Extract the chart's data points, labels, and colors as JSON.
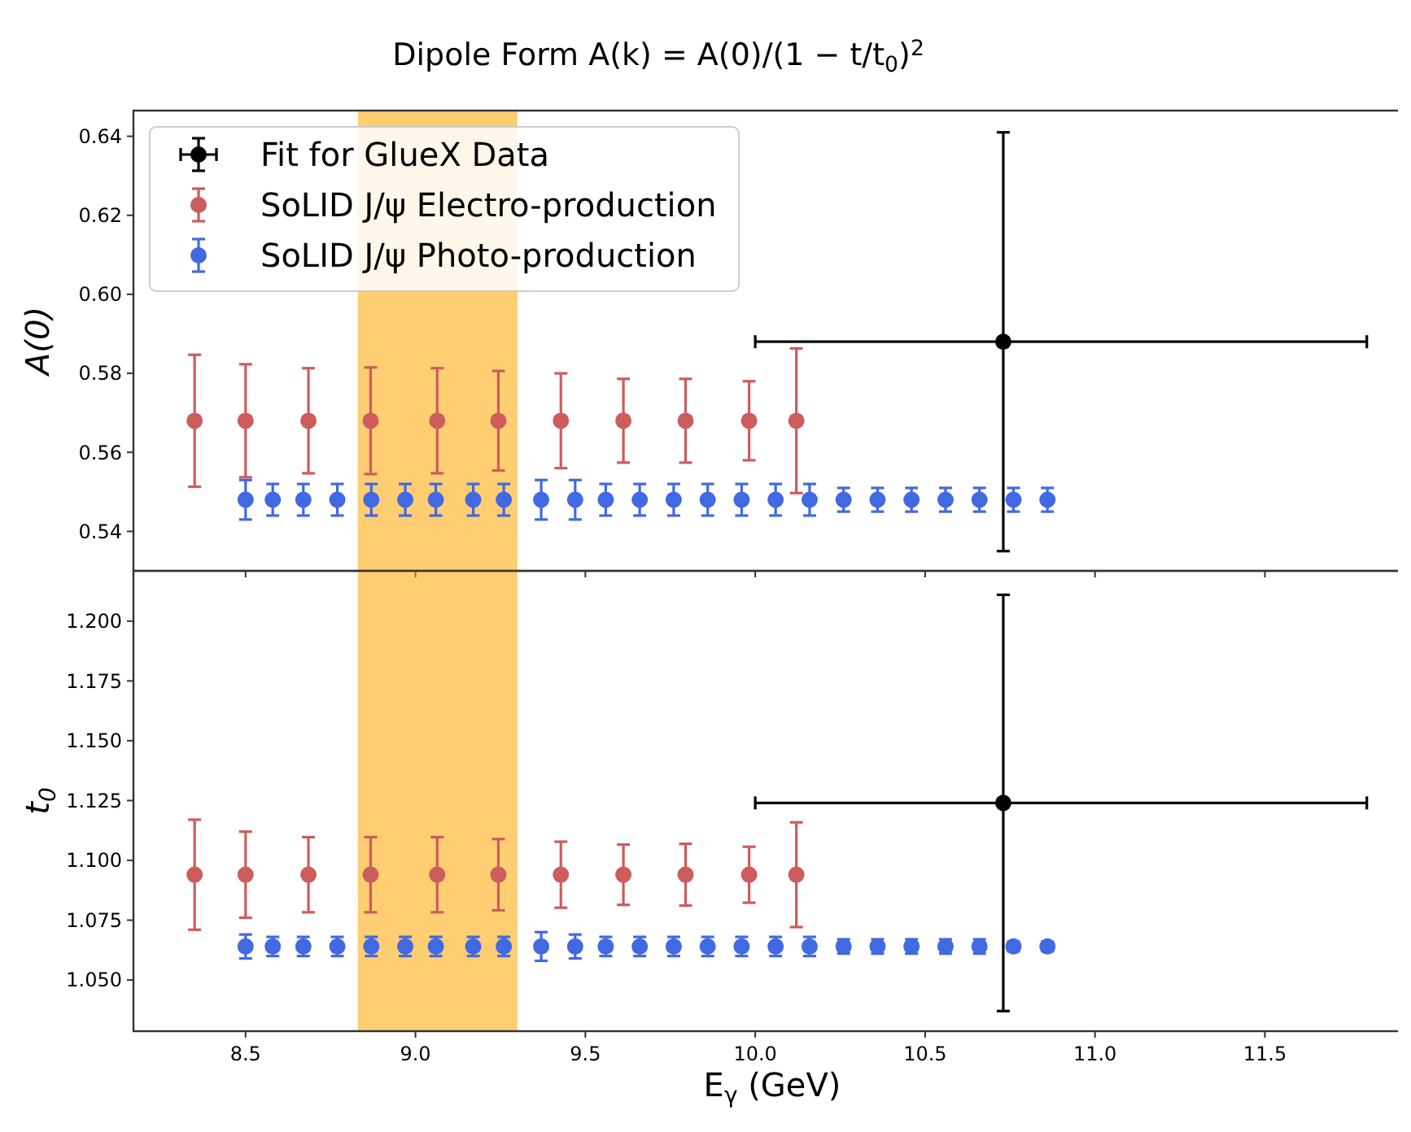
{
  "chart_data": [
    {
      "type": "scatter",
      "title": "Dipole Form A(k) = A(0)/(1 − t/t$_{0}$)$^{2}$",
      "ylabel": "A(0)",
      "xlim": [
        8.17,
        11.93
      ],
      "xticks": [
        8.5,
        9,
        9.5,
        10,
        10.5,
        11,
        11.5
      ],
      "ylim": [
        0.53,
        0.6465
      ],
      "yticks": [
        0.54,
        0.56,
        0.58,
        {
          "value": 0.6,
          "label": "0.60"
        },
        0.62,
        0.64
      ],
      "tick_labels": "y",
      "legend": "top left",
      "grid": false,
      "marker": "circle",
      "bands": [
        {
          "axis": "x",
          "from": 8.83,
          "to": 9.3,
          "color": "#ffa500"
        }
      ],
      "series": [
        {
          "name": "Fit for GlueX Data",
          "color": "#000000",
          "x": [
            10.73
          ],
          "values": [
            0.588
          ],
          "errors": [
            [
              0.535,
              0.641
            ]
          ],
          "xerrors": [
            [
              10.0,
              11.8
            ]
          ]
        },
        {
          "name": "SoLID J/ψ Electro-production",
          "color": "#cd5c5c",
          "x": [
            8.35,
            8.5,
            8.685,
            8.868,
            9.064,
            9.244,
            9.428,
            9.612,
            9.795,
            9.982,
            10.121
          ],
          "values": [
            0.568,
            0.568,
            0.568,
            0.568,
            0.568,
            0.568,
            0.568,
            0.568,
            0.568,
            0.568,
            0.568
          ],
          "errors": [
            0.0167,
            0.0143,
            0.0133,
            0.0135,
            0.0133,
            0.0126,
            0.012,
            0.0106,
            0.0106,
            0.01,
            0.0183
          ]
        },
        {
          "name": "SoLID J/ψ Photo-production",
          "color": "#4169e1",
          "x": [
            8.5,
            8.58,
            8.67,
            8.77,
            8.87,
            8.97,
            9.06,
            9.17,
            9.26,
            9.37,
            9.47,
            9.56,
            9.66,
            9.76,
            9.86,
            9.96,
            10.06,
            10.16,
            10.26,
            10.36,
            10.46,
            10.56,
            10.66,
            10.76,
            10.86
          ],
          "values": [
            0.548,
            0.548,
            0.548,
            0.548,
            0.548,
            0.548,
            0.548,
            0.548,
            0.548,
            0.548,
            0.548,
            0.548,
            0.548,
            0.548,
            0.548,
            0.548,
            0.548,
            0.548,
            0.548,
            0.548,
            0.548,
            0.548,
            0.548,
            0.548,
            0.548
          ],
          "errors": [
            0.005,
            0.004,
            0.004,
            0.004,
            0.004,
            0.004,
            0.004,
            0.004,
            0.004,
            0.005,
            0.005,
            0.004,
            0.004,
            0.004,
            0.004,
            0.004,
            0.004,
            0.004,
            0.003,
            0.003,
            0.003,
            0.003,
            0.003,
            0.003,
            0.003
          ]
        }
      ]
    },
    {
      "type": "scatter",
      "xlabel": "E$_{γ}$ (GeV)",
      "ylabel": "t$_{0}$",
      "xlim": [
        8.17,
        11.93
      ],
      "xticks": [
        8.5,
        {
          "value": 9,
          "label": "9.0"
        },
        9.5,
        {
          "value": 10,
          "label": "10.0"
        },
        10.5,
        {
          "value": 11,
          "label": "11.0"
        },
        11.5
      ],
      "ylim": [
        1.0286,
        1.221
      ],
      "yticks": [
        {
          "value": 1.05,
          "label": "1.050"
        },
        {
          "value": 1.075,
          "label": "1.075"
        },
        {
          "value": 1.1,
          "label": "1.100"
        },
        {
          "value": 1.125,
          "label": "1.125"
        },
        {
          "value": 1.15,
          "label": "1.150"
        },
        {
          "value": 1.175,
          "label": "1.175"
        },
        {
          "value": 1.2,
          "label": "1.200"
        }
      ],
      "grid": false,
      "marker": "circle",
      "bands": [
        {
          "axis": "x",
          "from": 8.83,
          "to": 9.3,
          "color": "#ffa500"
        }
      ],
      "series": [
        {
          "color": "#000000",
          "x": [
            10.73
          ],
          "values": [
            1.124
          ],
          "errors": [
            [
              1.037,
              1.211
            ]
          ],
          "xerrors": [
            [
              10.0,
              11.8
            ]
          ]
        },
        {
          "color": "#cd5c5c",
          "x": [
            8.35,
            8.5,
            8.685,
            8.868,
            9.064,
            9.244,
            9.428,
            9.612,
            9.795,
            9.982,
            10.121
          ],
          "values": [
            1.094,
            1.094,
            1.094,
            1.094,
            1.094,
            1.094,
            1.094,
            1.094,
            1.094,
            1.094,
            1.094
          ],
          "errors": [
            0.023,
            0.018,
            0.0157,
            0.0157,
            0.0157,
            0.0149,
            0.0138,
            0.0126,
            0.0129,
            0.0117,
            0.0219
          ]
        },
        {
          "color": "#4169e1",
          "x": [
            8.5,
            8.58,
            8.67,
            8.77,
            8.87,
            8.97,
            9.06,
            9.17,
            9.26,
            9.37,
            9.47,
            9.56,
            9.66,
            9.76,
            9.86,
            9.96,
            10.06,
            10.16,
            10.26,
            10.36,
            10.46,
            10.56,
            10.66,
            10.76,
            10.86
          ],
          "values": [
            1.064,
            1.064,
            1.064,
            1.064,
            1.064,
            1.064,
            1.064,
            1.064,
            1.064,
            1.064,
            1.064,
            1.064,
            1.064,
            1.064,
            1.064,
            1.064,
            1.064,
            1.064,
            1.064,
            1.064,
            1.064,
            1.064,
            1.064,
            1.064,
            1.064
          ],
          "errors": [
            0.005,
            0.004,
            0.004,
            0.004,
            0.004,
            0.004,
            0.004,
            0.004,
            0.004,
            0.006,
            0.005,
            0.004,
            0.004,
            0.004,
            0.004,
            0.004,
            0.004,
            0.004,
            0.003,
            0.003,
            0.003,
            0.003,
            0.003,
            0.002,
            0.002
          ]
        }
      ]
    }
  ]
}
